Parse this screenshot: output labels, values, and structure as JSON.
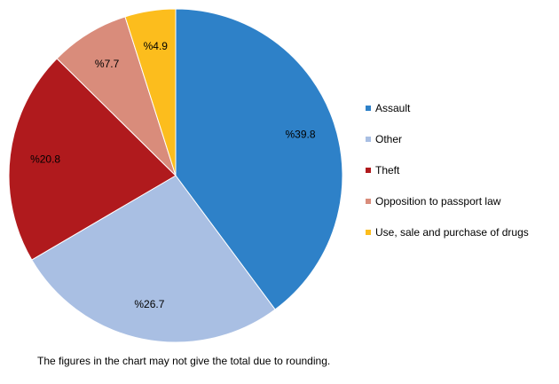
{
  "chart_data": {
    "type": "pie",
    "slices": [
      {
        "label": "Assault",
        "value": 39.8,
        "display": "%39.8",
        "color": "#2E81C8"
      },
      {
        "label": "Other",
        "value": 26.7,
        "display": "%26.7",
        "color": "#A9BFE3"
      },
      {
        "label": "Theft",
        "value": 20.8,
        "display": "%20.8",
        "color": "#B01A1D"
      },
      {
        "label": "Opposition to passport law",
        "value": 7.7,
        "display": "%7.7",
        "color": "#D98C7B"
      },
      {
        "label": "Use, sale and purchase of drugs",
        "value": 4.9,
        "display": "%4.9",
        "color": "#FCBD1D"
      }
    ],
    "start_angle": "12 o'clock",
    "direction": "clockwise",
    "legend_position": "right"
  },
  "footnote": "The figures in the chart may not give the total due to rounding."
}
